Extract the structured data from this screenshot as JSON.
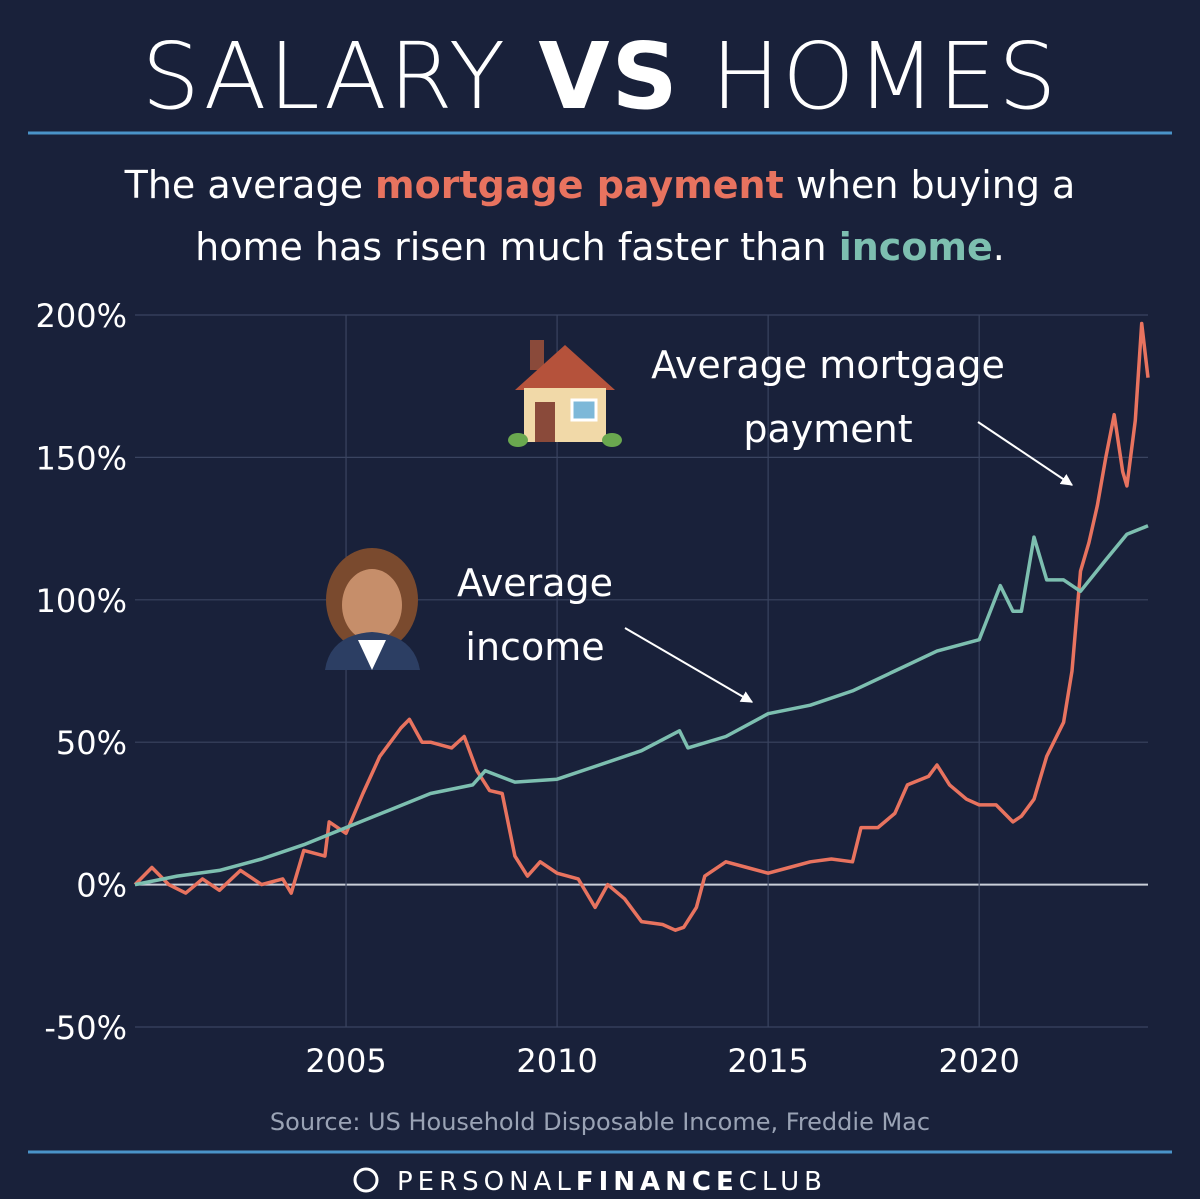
{
  "chart_data": {
    "type": "line",
    "title": [
      "SALARY",
      "VS",
      "HOMES"
    ],
    "subtitle": [
      [
        "The average ",
        "mortgage payment",
        " when buying a"
      ],
      [
        "home has risen much faster than ",
        "income",
        "."
      ]
    ],
    "xlim": [
      2000,
      2024
    ],
    "xticks": [
      2005,
      2010,
      2015,
      2020
    ],
    "ylim": [
      -50,
      200
    ],
    "yticks": [
      {
        "value": -50,
        "label": "-50%"
      },
      {
        "value": 0,
        "label": "0%"
      },
      {
        "value": 50,
        "label": "50%"
      },
      {
        "value": 100,
        "label": "100%"
      },
      {
        "value": 150,
        "label": "150%"
      },
      {
        "value": 200,
        "label": "200%"
      }
    ],
    "grid": true,
    "series": [
      {
        "name": "Average mortgage payment",
        "color": "#e8735f",
        "x": [
          2000,
          2000.4,
          2000.8,
          2001.2,
          2001.6,
          2002,
          2002.5,
          2003,
          2003.5,
          2003.7,
          2004,
          2004.5,
          2004.6,
          2005,
          2005.4,
          2005.8,
          2006.3,
          2006.5,
          2006.8,
          2007,
          2007.5,
          2007.8,
          2008.1,
          2008.4,
          2008.7,
          2009,
          2009.3,
          2009.6,
          2010,
          2010.5,
          2010.9,
          2011.2,
          2011.6,
          2012,
          2012.5,
          2012.8,
          2013,
          2013.3,
          2013.5,
          2014,
          2014.5,
          2015,
          2015.5,
          2016,
          2016.5,
          2017,
          2017.2,
          2017.6,
          2018,
          2018.3,
          2018.8,
          2019,
          2019.3,
          2019.7,
          2020,
          2020.4,
          2020.8,
          2021,
          2021.3,
          2021.6,
          2022,
          2022.2,
          2022.4,
          2022.6,
          2022.8,
          2023,
          2023.2,
          2023.4,
          2023.5,
          2023.7,
          2023.85,
          2024
        ],
        "values": [
          0,
          6,
          0,
          -3,
          2,
          -2,
          5,
          0,
          2,
          -3,
          12,
          10,
          22,
          18,
          32,
          45,
          55,
          58,
          50,
          50,
          48,
          52,
          40,
          33,
          32,
          10,
          3,
          8,
          4,
          2,
          -8,
          0,
          -5,
          -13,
          -14,
          -16,
          -15,
          -8,
          3,
          8,
          6,
          4,
          6,
          8,
          9,
          8,
          20,
          20,
          25,
          35,
          38,
          42,
          35,
          30,
          28,
          28,
          22,
          24,
          30,
          45,
          57,
          75,
          110,
          120,
          133,
          150,
          165,
          145,
          140,
          163,
          197,
          178
        ]
      },
      {
        "name": "Average income",
        "color": "#7dbfb0",
        "x": [
          2000,
          2001,
          2002,
          2003,
          2004,
          2005,
          2006,
          2007,
          2008,
          2008.3,
          2009,
          2010,
          2011,
          2012,
          2012.9,
          2013.1,
          2014,
          2015,
          2016,
          2017,
          2018,
          2019,
          2020,
          2020.5,
          2020.8,
          2021,
          2021.3,
          2021.6,
          2022,
          2022.4,
          2023,
          2023.5,
          2024
        ],
        "values": [
          0,
          3,
          5,
          9,
          14,
          20,
          26,
          32,
          35,
          40,
          36,
          37,
          42,
          47,
          54,
          48,
          52,
          60,
          63,
          68,
          75,
          82,
          86,
          105,
          96,
          96,
          122,
          107,
          107,
          103,
          114,
          123,
          126
        ]
      }
    ],
    "annotations": [
      [
        "Average mortgage",
        "payment"
      ],
      [
        "Average",
        "income"
      ]
    ],
    "source": "Source: US Household Disposable Income, Freddie Mac",
    "brand": [
      "PERSONAL",
      "FINANCE",
      "CLUB"
    ]
  }
}
